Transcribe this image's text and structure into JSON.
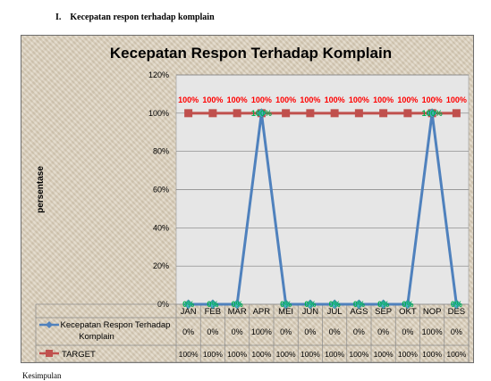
{
  "document": {
    "heading_number": "I.",
    "heading_text": "Kecepatan respon terhadap komplain",
    "footer_text": "Kesimpulan"
  },
  "chart_data": {
    "type": "line",
    "title": "Kecepatan Respon Terhadap Komplain",
    "ylabel": "persentase",
    "xlabel": "",
    "ylim": [
      0,
      120
    ],
    "yticks": [
      "0%",
      "20%",
      "40%",
      "60%",
      "80%",
      "100%",
      "120%"
    ],
    "grid": true,
    "legend": "data-table",
    "categories": [
      "JAN",
      "FEB",
      "MAR",
      "APR",
      "MEI",
      "JUN",
      "JUL",
      "AGS",
      "SEP",
      "OKT",
      "NOP",
      "DES"
    ],
    "series": [
      {
        "name": "Kecepatan Respon Terhadap Komplain",
        "values": [
          0,
          0,
          0,
          100,
          0,
          0,
          0,
          0,
          0,
          0,
          100,
          0
        ],
        "labels": [
          "0%",
          "0%",
          "0%",
          "100%",
          "0%",
          "0%",
          "0%",
          "0%",
          "0%",
          "0%",
          "100%",
          "0%"
        ],
        "color": "#4f81bd",
        "marker_color": "#4bacc6",
        "data_label_color": "#00b050"
      },
      {
        "name": "TARGET",
        "values": [
          100,
          100,
          100,
          100,
          100,
          100,
          100,
          100,
          100,
          100,
          100,
          100
        ],
        "labels": [
          "100%",
          "100%",
          "100%",
          "100%",
          "100%",
          "100%",
          "100%",
          "100%",
          "100%",
          "100%",
          "100%",
          "100%"
        ],
        "color": "#c0504d",
        "data_label_color": "#ff0000"
      }
    ],
    "colors": {
      "plot_background": "#e6e6e6",
      "gridline": "#7f7f7f"
    }
  }
}
